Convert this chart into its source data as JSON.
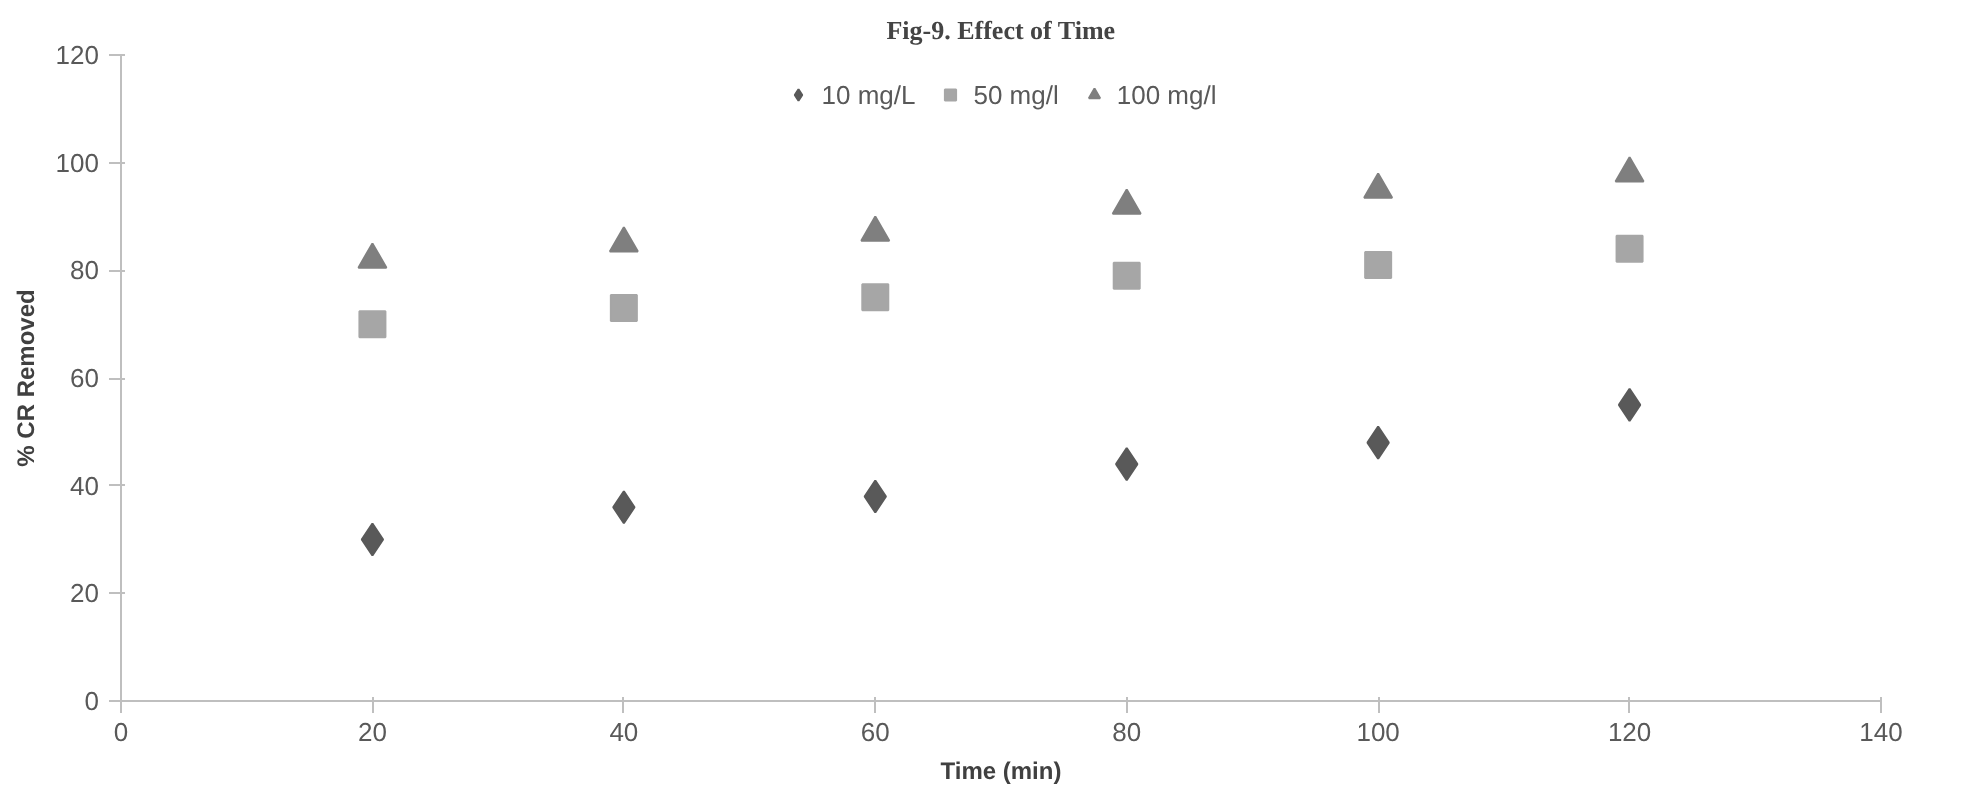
{
  "chart_data": {
    "type": "scatter",
    "title": "Fig-9. Effect of Time",
    "xlabel": "Time (min)",
    "ylabel": "% CR Removed",
    "x": [
      20,
      40,
      60,
      80,
      100,
      120
    ],
    "series": [
      {
        "name": "10 mg/L",
        "color": "#595959",
        "marker": "diamond",
        "values": [
          30,
          36,
          38,
          44,
          48,
          55
        ]
      },
      {
        "name": "50 mg/l",
        "color": "#a6a6a6",
        "marker": "square",
        "values": [
          70,
          73,
          75,
          79,
          81,
          84
        ]
      },
      {
        "name": "100 mg/l",
        "color": "#7f7f7f",
        "marker": "triangle",
        "values": [
          82,
          85,
          87,
          92,
          95,
          98
        ]
      }
    ],
    "xlim": [
      0,
      140
    ],
    "xticks": [
      0,
      20,
      40,
      60,
      80,
      100,
      120,
      140
    ],
    "ylim": [
      0,
      120
    ],
    "yticks": [
      0,
      20,
      40,
      60,
      80,
      100,
      120
    ],
    "grid": false,
    "legend": "top"
  }
}
